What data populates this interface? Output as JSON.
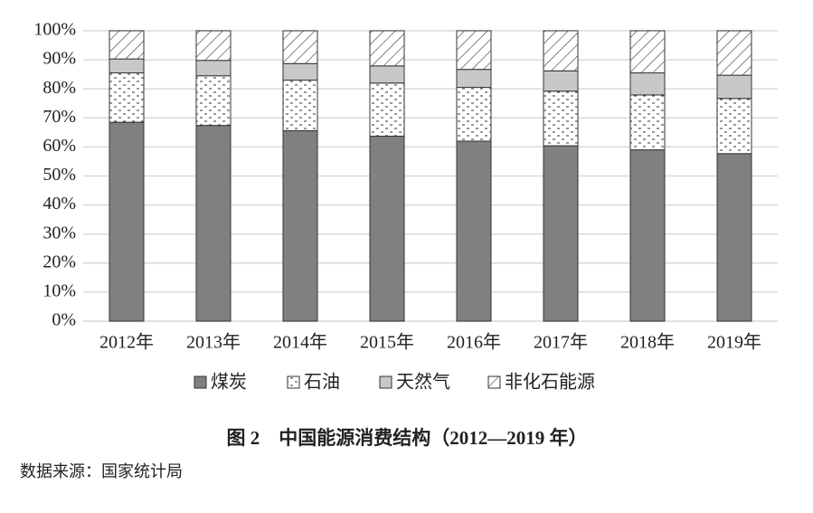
{
  "chart_data": {
    "type": "stacked_bar",
    "title": "图 2　中国能源消费结构（2012—2019 年）",
    "source": "数据来源：国家统计局",
    "categories": [
      "2012年",
      "2013年",
      "2014年",
      "2015年",
      "2016年",
      "2017年",
      "2018年",
      "2019年"
    ],
    "series": [
      {
        "name": "煤炭",
        "color": "#808080",
        "pattern": "solid",
        "values": [
          68.5,
          67.4,
          65.6,
          63.7,
          62.0,
          60.4,
          59.0,
          57.7
        ]
      },
      {
        "name": "石油",
        "color": "#ffffff",
        "pattern": "dash",
        "values": [
          17.0,
          17.1,
          17.4,
          18.3,
          18.5,
          18.8,
          18.9,
          19.0
        ]
      },
      {
        "name": "天然气",
        "color": "#c8c8c8",
        "pattern": "solid",
        "values": [
          4.8,
          5.3,
          5.7,
          5.9,
          6.2,
          7.0,
          7.6,
          8.0
        ]
      },
      {
        "name": "非化石能源",
        "color": "#ffffff",
        "pattern": "hatch",
        "values": [
          9.7,
          10.2,
          11.3,
          12.1,
          13.3,
          13.8,
          14.5,
          15.3
        ]
      }
    ],
    "ylim": [
      0,
      100
    ],
    "yticks": [
      {
        "value": 0,
        "label": "0%"
      },
      {
        "value": 10,
        "label": "10%"
      },
      {
        "value": 20,
        "label": "20%"
      },
      {
        "value": 30,
        "label": "30%"
      },
      {
        "value": 40,
        "label": "40%"
      },
      {
        "value": 50,
        "label": "50%"
      },
      {
        "value": 60,
        "label": "60%"
      },
      {
        "value": 70,
        "label": "70%"
      },
      {
        "value": 80,
        "label": "80%"
      },
      {
        "value": 90,
        "label": "90%"
      },
      {
        "value": 100,
        "label": "100%"
      }
    ],
    "grid": true,
    "legend": "bottom"
  }
}
